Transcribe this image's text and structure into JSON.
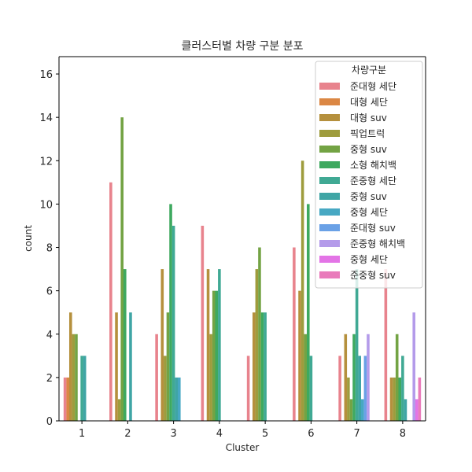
{
  "chart_data": {
    "type": "bar",
    "title": "클러스터별 차량 구분 분포",
    "xlabel": "Cluster",
    "ylabel": "count",
    "categories": [
      "1",
      "2",
      "3",
      "4",
      "5",
      "6",
      "7",
      "8"
    ],
    "ylim": [
      0,
      16.8
    ],
    "yticks": [
      0,
      2,
      4,
      6,
      8,
      10,
      12,
      14,
      16
    ],
    "grid": false,
    "legend": {
      "title": "차량구분",
      "placement": "top-right"
    },
    "series": [
      {
        "name": "준대형 세단",
        "color": "#e8838d",
        "values": [
          2,
          11,
          4,
          9,
          3,
          8,
          3,
          7
        ]
      },
      {
        "name": "대형 세단",
        "color": "#db8744",
        "values": [
          2,
          0,
          0,
          0,
          0,
          0,
          0,
          0
        ]
      },
      {
        "name": "대형 suv",
        "color": "#b5903d",
        "values": [
          5,
          5,
          7,
          7,
          5,
          6,
          4,
          2
        ]
      },
      {
        "name": "픽업트럭",
        "color": "#9e9c3d",
        "values": [
          4,
          1,
          3,
          4,
          7,
          12,
          2,
          2
        ]
      },
      {
        "name": "중형 suv",
        "color": "#73a344",
        "values": [
          4,
          14,
          5,
          6,
          8,
          4,
          1,
          4
        ]
      },
      {
        "name": "소형 해치백",
        "color": "#3ea95f",
        "values": [
          0,
          7,
          10,
          6,
          5,
          10,
          4,
          2
        ]
      },
      {
        "name": "준중형 세단",
        "color": "#40a994",
        "values": [
          3,
          0,
          9,
          7,
          5,
          3,
          7,
          3
        ]
      },
      {
        "name": " 중형 suv",
        "color": "#3fa5a5",
        "values": [
          3,
          5,
          2,
          0,
          0,
          0,
          3,
          1
        ]
      },
      {
        "name": "중형 세단",
        "color": "#47a8c3",
        "values": [
          0,
          0,
          2,
          0,
          0,
          0,
          1,
          0
        ]
      },
      {
        "name": "준대형 suv",
        "color": "#6aa1e6",
        "values": [
          0,
          0,
          0,
          0,
          0,
          0,
          3,
          0
        ]
      },
      {
        "name": "준중형 해치백",
        "color": "#b49bea",
        "values": [
          0,
          0,
          0,
          0,
          0,
          0,
          4,
          5
        ]
      },
      {
        "name": " 중형 세단",
        "color": "#e374e6",
        "values": [
          0,
          0,
          0,
          0,
          0,
          0,
          0,
          1
        ]
      },
      {
        "name": "준중형 suv",
        "color": "#e97bbb",
        "values": [
          0,
          0,
          0,
          0,
          0,
          0,
          0,
          2
        ]
      }
    ]
  }
}
